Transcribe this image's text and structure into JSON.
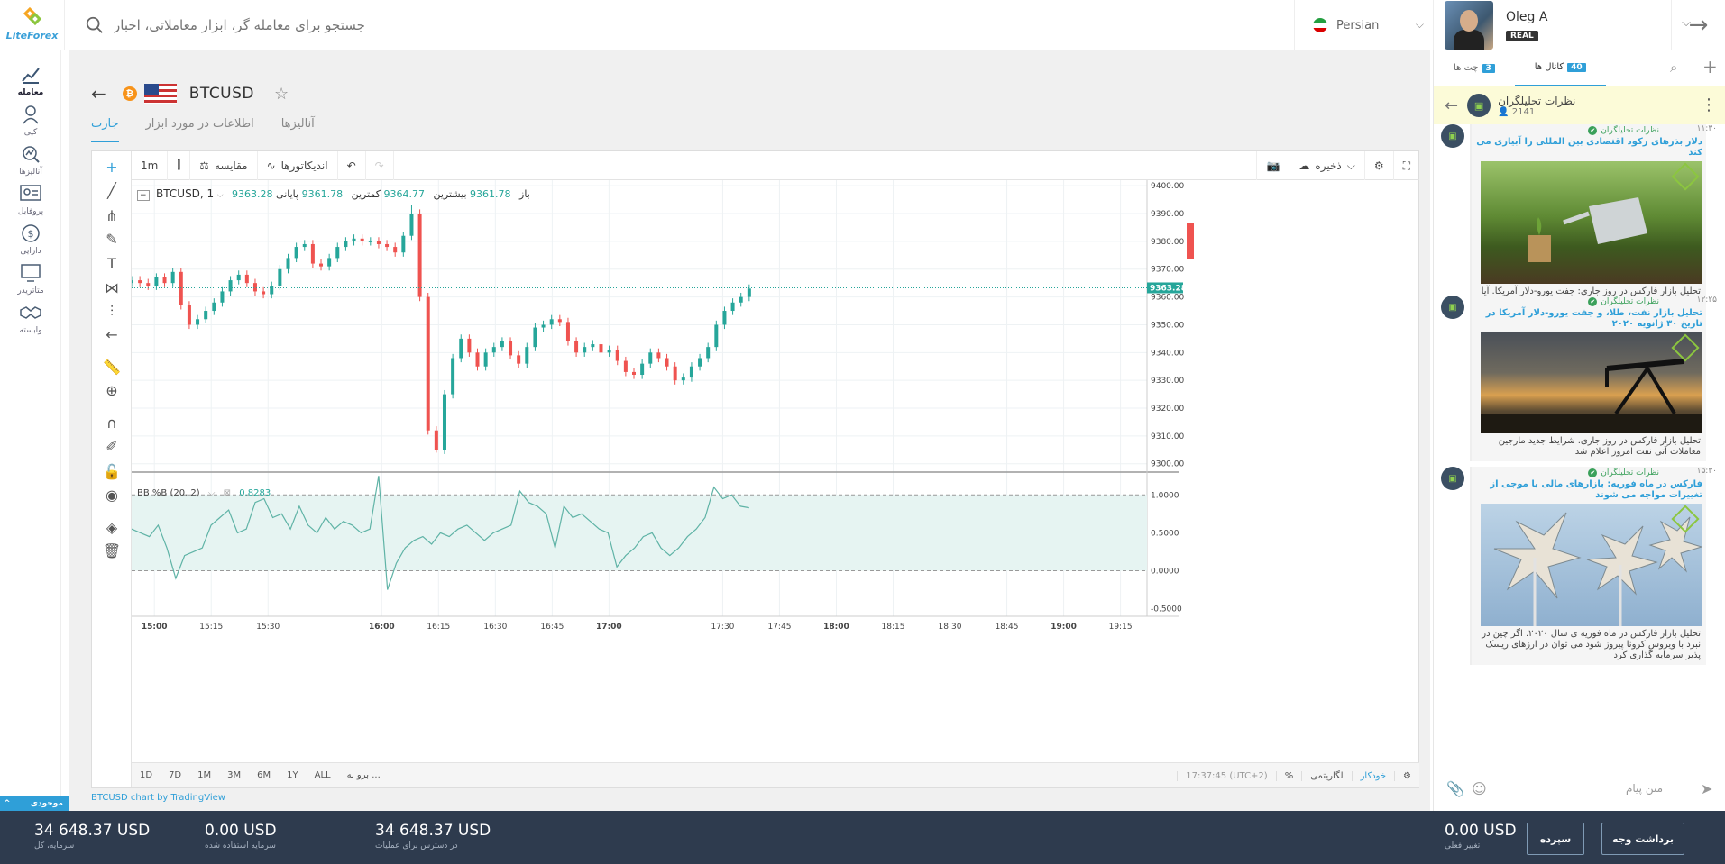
{
  "brand": {
    "name": "LiteForex"
  },
  "search": {
    "placeholder": "جستجو برای معامله گر، ابزار معاملاتی، اخبار"
  },
  "language": {
    "label": "Persian"
  },
  "user": {
    "name": "Oleg A",
    "account_type": "REAL"
  },
  "nav": [
    {
      "label": "معامله",
      "icon": "trade-chart-icon",
      "active": true
    },
    {
      "label": "کپی",
      "icon": "copy-trader-icon",
      "active": false
    },
    {
      "label": "آنالیزها",
      "icon": "analytics-icon",
      "active": false
    },
    {
      "label": "پروفایل",
      "icon": "profile-card-icon",
      "active": false
    },
    {
      "label": "دارایی",
      "icon": "dollar-coin-icon",
      "active": false
    },
    {
      "label": "متاتریدر",
      "icon": "monitor-icon",
      "active": false
    },
    {
      "label": "وابسته",
      "icon": "handshake-icon",
      "active": false
    }
  ],
  "demo_badge": "موجودی",
  "instrument": {
    "symbol": "BTCUSD"
  },
  "tabs": [
    {
      "label": "جارت",
      "active": true
    },
    {
      "label": "اطلاعات در مورد ابزار",
      "active": false
    },
    {
      "label": "آنالیزها",
      "active": false
    }
  ],
  "chart_toolbar": {
    "interval": "1m",
    "compare": "مقایسه",
    "indicators": "اندیکاتورها",
    "save": "ذخیره"
  },
  "legend": {
    "symbol": "BTCUSD, 1",
    "open_label": "باز",
    "open": "9361.78",
    "high_label": "بیشترین",
    "high": "9364.77",
    "low_label": "کمترین",
    "low": "9361.78",
    "close_label": "پایانی",
    "close": "9363.28"
  },
  "indicator_legend": {
    "name": "BB %B (20, 2)",
    "value": "0.8283"
  },
  "chart_bottom": {
    "ranges": [
      "1D",
      "7D",
      "1M",
      "3M",
      "6M",
      "1Y",
      "ALL",
      "برو به ..."
    ],
    "time": "17:37:45 (UTC+2)",
    "pct": "%",
    "log": "لگاریتمی",
    "auto": "خودکار"
  },
  "credit": "BTCUSD chart by TradingView",
  "chart_data": [
    {
      "type": "candlestick",
      "title": "BTCUSD, 1",
      "x_ticks": [
        "15:00",
        "15:15",
        "15:30",
        "16:00",
        "16:15",
        "16:30",
        "16:45",
        "17:00",
        "17:30",
        "17:45",
        "18:00",
        "18:15",
        "18:30",
        "18:45",
        "19:00",
        "19:15"
      ],
      "y_ticks": [
        "9300.00",
        "9310.00",
        "9320.00",
        "9330.00",
        "9340.00",
        "9350.00",
        "9360.00",
        "9370.00",
        "9380.00",
        "9390.00",
        "9400.00"
      ],
      "ylim": [
        9297,
        9402
      ],
      "last_price": "9363.28",
      "approx_close_path": [
        9366,
        9365,
        9364,
        9367,
        9365,
        9369,
        9357,
        9350,
        9352,
        9355,
        9358,
        9362,
        9366,
        9368,
        9365,
        9362,
        9361,
        9364,
        9370,
        9374,
        9378,
        9379,
        9372,
        9371,
        9374,
        9378,
        9380,
        9381,
        9380,
        9380,
        9379,
        9378,
        9376,
        9382,
        9390,
        9360,
        9312,
        9305,
        9325,
        9338,
        9345,
        9340,
        9335,
        9340,
        9342,
        9344,
        9339,
        9336,
        9342,
        9349,
        9350,
        9352,
        9351,
        9344,
        9340,
        9342,
        9343,
        9340,
        9341,
        9337,
        9333,
        9332,
        9336,
        9340,
        9338,
        9335,
        9330,
        9331,
        9335,
        9338,
        9342,
        9350,
        9355,
        9358,
        9360,
        9363
      ],
      "approx_close_time_range": [
        "14:54",
        "17:37"
      ],
      "highlight": {
        "high": 9393,
        "low": 9304
      }
    },
    {
      "type": "line",
      "title": "BB %B (20, 2)",
      "y_ticks": [
        "-0.5000",
        "0.0000",
        "0.5000",
        "1.0000"
      ],
      "ylim": [
        -0.6,
        1.3
      ],
      "band": [
        0,
        1
      ],
      "last_value": "0.8283",
      "approx_values": [
        0.55,
        0.5,
        0.45,
        0.6,
        0.3,
        -0.1,
        0.2,
        0.25,
        0.3,
        0.6,
        0.7,
        0.8,
        0.5,
        0.55,
        0.9,
        0.95,
        0.7,
        0.75,
        0.55,
        0.85,
        0.6,
        0.5,
        0.7,
        0.55,
        0.65,
        0.6,
        0.5,
        0.55,
        1.25,
        -0.25,
        0.1,
        0.3,
        0.4,
        0.45,
        0.35,
        0.5,
        0.45,
        0.55,
        0.6,
        0.5,
        0.4,
        0.5,
        0.55,
        0.6,
        1.05,
        0.9,
        0.85,
        0.75,
        0.3,
        0.85,
        0.7,
        0.75,
        0.65,
        0.55,
        0.5,
        0.05,
        0.2,
        0.3,
        0.45,
        0.5,
        0.3,
        0.2,
        0.3,
        0.45,
        0.55,
        0.7,
        1.1,
        0.95,
        1.0,
        0.85,
        0.83
      ]
    }
  ],
  "right_panel": {
    "tabs": [
      {
        "label": "چت ها",
        "count": "3",
        "active": false
      },
      {
        "label": "کانال ها",
        "count": "40",
        "active": true
      }
    ],
    "channel": {
      "name": "نظرات تحلیلگران",
      "members": "2141"
    },
    "messages": [
      {
        "from": "نظرات تحلیلگران",
        "time": "۱۱:۳۰",
        "title": "دلار بذرهای رکود اقتصادی بین المللی را آبیاری می کند",
        "body": "تحلیل بازار فارکس در روز جاری: جفت یورو-دلار آمریکا. آیا شیوع ویروس کرونا در چین دلیلی برای کاهش نرخ بهره توسط بانک مرکزی آمریکا خواهد بود؟",
        "image": "watering-can-money-image"
      },
      {
        "from": "نظرات تحلیلگران",
        "time": "۱۲:۲۵",
        "title": "تحلیل بازار نفت، طلا، و جفت یورو-دلار آمریکا در تاریخ ۳۰ ژانویه ۲۰۲۰",
        "body": "تحلیل بازار فارکس در روز جاری. شرایط جدید مارجین معاملات آتی نفت امروز اعلام شد",
        "image": "oil-pump-sunset-image"
      },
      {
        "from": "نظرات تحلیلگران",
        "time": "۱۵:۳۰",
        "title": "فارکس در ماه فوریه: بازارهای مالی با موجی از تغییرات مواجه می شوند",
        "body": "تحلیل بازار فارکس در ماه فوریه ی سال ۲۰۲۰. اگر چین در نبرد با ویروس کرونا پیروز شود می توان در ارزهای ریسک پذیر سرمایه گذاری کرد",
        "image": "money-pinwheels-image"
      }
    ],
    "chat_placeholder": "متن پیام"
  },
  "footer": {
    "stats": [
      {
        "value": "34 648.37 USD",
        "label": "سرمایه، کل"
      },
      {
        "value": "0.00 USD",
        "label": "سرمایه استفاده شده"
      },
      {
        "value": "34 648.37 USD",
        "label": "در دسترس برای عملیات"
      }
    ],
    "pnl": {
      "value": "0.00 USD",
      "label": "تغییر فعلی"
    },
    "deposit_label": "سپرده",
    "withdraw_label": "برداشت وجه"
  },
  "colors": {
    "accent": "#2f9fd8",
    "up": "#26a69a",
    "down": "#ef5350",
    "footer_bg": "#2e3b4e"
  }
}
